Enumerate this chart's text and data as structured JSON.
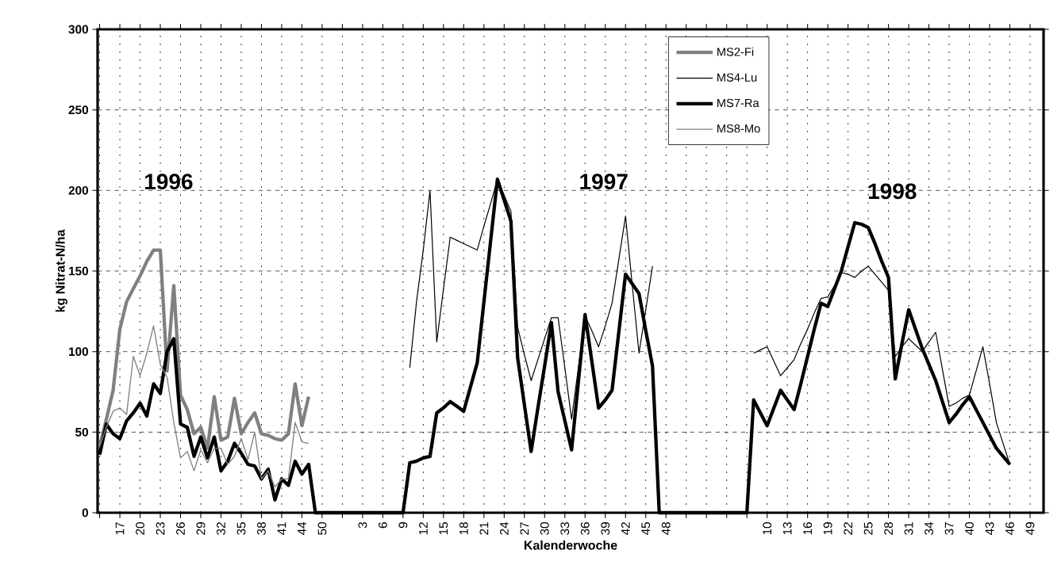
{
  "chart_data": {
    "type": "line",
    "xlabel": "Kalenderwoche",
    "ylabel": "kg Nitrat-N/ha",
    "categories": [
      null,
      null,
      null,
      "17",
      null,
      null,
      "20",
      null,
      null,
      "23",
      null,
      null,
      "26",
      null,
      null,
      "29",
      null,
      null,
      "32",
      null,
      null,
      "35",
      null,
      null,
      "38",
      null,
      null,
      "41",
      null,
      null,
      "44",
      null,
      null,
      "50",
      null,
      null,
      null,
      null,
      null,
      "3",
      null,
      null,
      "6",
      null,
      null,
      "9",
      null,
      null,
      "12",
      null,
      null,
      "15",
      null,
      null,
      "18",
      null,
      null,
      "21",
      null,
      null,
      "24",
      null,
      null,
      "27",
      null,
      null,
      "30",
      null,
      null,
      "33",
      null,
      null,
      "36",
      null,
      null,
      "39",
      null,
      null,
      "42",
      null,
      null,
      "45",
      null,
      null,
      "48",
      null,
      null,
      null,
      null,
      null,
      null,
      null,
      null,
      null,
      null,
      null,
      null,
      null,
      null,
      "10",
      null,
      null,
      "13",
      null,
      null,
      "16",
      null,
      null,
      "19",
      null,
      null,
      "22",
      null,
      null,
      "25",
      null,
      null,
      "28",
      null,
      null,
      "31",
      null,
      null,
      "34",
      null,
      null,
      "37",
      null,
      null,
      "40",
      null,
      null,
      "43",
      null,
      null,
      "46",
      null,
      null,
      "49",
      null,
      null
    ],
    "series": [
      {
        "name": "MS2-Fi",
        "color": "#808080",
        "values": [
          41,
          58,
          76,
          114,
          131,
          139,
          147,
          156,
          163,
          163,
          88,
          141,
          73,
          64,
          49,
          53,
          40,
          72,
          45,
          47,
          71,
          49,
          56,
          62,
          49,
          48,
          46,
          45,
          49,
          80,
          54,
          72,
          null,
          null,
          null,
          null,
          null,
          null,
          null,
          null,
          null,
          null,
          null,
          null,
          null,
          null,
          null,
          null,
          null,
          null,
          null,
          null,
          null,
          null,
          null,
          null,
          null,
          null,
          null,
          null,
          null,
          null,
          null,
          null,
          null,
          null,
          null,
          null,
          null,
          null,
          null,
          null,
          null,
          null,
          null,
          null,
          null,
          null,
          null,
          null,
          null,
          null,
          null,
          null,
          null,
          null,
          null,
          null,
          null,
          null,
          null,
          null,
          null,
          null,
          null,
          null,
          null,
          null,
          null,
          null,
          null,
          null,
          null,
          null,
          null,
          null,
          null,
          null,
          null,
          null,
          null,
          null,
          null,
          null,
          null,
          null,
          null,
          null,
          null,
          null,
          null,
          null,
          null,
          null,
          null,
          null,
          null,
          null,
          null,
          null,
          null,
          null,
          null,
          null,
          null,
          null,
          null,
          null,
          null,
          null,
          null
        ]
      },
      {
        "name": "MS4-Lu",
        "color": "#000000",
        "values": [
          null,
          null,
          null,
          null,
          null,
          null,
          null,
          null,
          null,
          null,
          null,
          null,
          null,
          null,
          null,
          null,
          null,
          null,
          null,
          null,
          null,
          null,
          null,
          null,
          null,
          null,
          null,
          null,
          null,
          null,
          null,
          null,
          null,
          null,
          null,
          null,
          null,
          null,
          null,
          null,
          null,
          null,
          null,
          null,
          null,
          null,
          90,
          131,
          163,
          200,
          106,
          139,
          171,
          169,
          167,
          165,
          163,
          178,
          192,
          207,
          197,
          187,
          115,
          98,
          82,
          95,
          108,
          121,
          121,
          90,
          58,
          90,
          122,
          113,
          103,
          116,
          130,
          157,
          184,
          141,
          99,
          126,
          153,
          null,
          null,
          null,
          null,
          null,
          null,
          null,
          null,
          null,
          null,
          null,
          null,
          null,
          null,
          99,
          101,
          103,
          94,
          85,
          90,
          95,
          105,
          114,
          124,
          133,
          134,
          141,
          149,
          148,
          146,
          150,
          153,
          148,
          143,
          138,
          97,
          103,
          108,
          104,
          100,
          106,
          112,
          89,
          66,
          68,
          71,
          73,
          88,
          103,
          80,
          56,
          43,
          30,
          null,
          null,
          null,
          null,
          null
        ]
      },
      {
        "name": "MS7-Ra",
        "color": "#000000",
        "values": [
          36,
          55,
          49,
          46,
          57,
          62,
          68,
          60,
          80,
          74,
          100,
          108,
          55,
          53,
          35,
          47,
          34,
          47,
          26,
          32,
          43,
          37,
          30,
          29,
          21,
          27,
          8,
          21,
          17,
          32,
          24,
          30,
          0,
          0,
          0,
          0,
          0,
          0,
          0,
          0,
          0,
          0,
          0,
          0,
          0,
          0,
          31,
          32,
          34,
          35,
          62,
          65,
          69,
          66,
          63,
          78,
          93,
          131,
          169,
          207,
          194,
          181,
          96,
          67,
          38,
          65,
          91,
          118,
          75,
          57,
          39,
          81,
          123,
          94,
          65,
          70,
          76,
          112,
          148,
          142,
          136,
          113,
          91,
          0,
          0,
          0,
          0,
          0,
          0,
          0,
          0,
          0,
          0,
          0,
          0,
          0,
          0,
          70,
          62,
          54,
          65,
          76,
          70,
          64,
          80,
          97,
          114,
          130,
          128,
          139,
          150,
          165,
          180,
          179,
          177,
          167,
          156,
          146,
          83,
          105,
          126,
          114,
          102,
          92,
          82,
          69,
          56,
          61,
          67,
          72,
          64,
          56,
          48,
          40,
          35,
          30,
          null,
          null,
          null,
          null,
          null
        ]
      },
      {
        "name": "MS8-Mo",
        "color": "#808080",
        "values": [
          41,
          53,
          63,
          65,
          61,
          97,
          85,
          99,
          116,
          92,
          84,
          56,
          34,
          38,
          26,
          39,
          31,
          40,
          40,
          30,
          35,
          46,
          33,
          50,
          21,
          26,
          16,
          21,
          21,
          56,
          44,
          43,
          null,
          null,
          null,
          null,
          null,
          null,
          null,
          null,
          null,
          null,
          null,
          null,
          null,
          null,
          null,
          null,
          null,
          null,
          null,
          null,
          null,
          null,
          null,
          null,
          null,
          null,
          null,
          null,
          null,
          null,
          null,
          null,
          null,
          null,
          null,
          null,
          null,
          null,
          null,
          null,
          null,
          null,
          null,
          null,
          null,
          null,
          null,
          null,
          null,
          null,
          null,
          null,
          null,
          null,
          null,
          null,
          null,
          null,
          null,
          null,
          null,
          null,
          null,
          null,
          null,
          null,
          null,
          null,
          null,
          null,
          null,
          null,
          null,
          null,
          null,
          null,
          null,
          null,
          null,
          null,
          null,
          null,
          null,
          null,
          null,
          null,
          null,
          null,
          null,
          null,
          null,
          null,
          null,
          null,
          null,
          null,
          null,
          null,
          null,
          null,
          null,
          null,
          null,
          null,
          null,
          null,
          null,
          null,
          null
        ]
      }
    ],
    "annotations": [
      "1996",
      "1997",
      "1998"
    ],
    "ylim": [
      0,
      300
    ],
    "yticks": [
      0,
      50,
      100,
      150,
      200,
      250,
      300
    ],
    "grid": true,
    "legend": "top right",
    "marker": "none",
    "line_style": "solid"
  }
}
